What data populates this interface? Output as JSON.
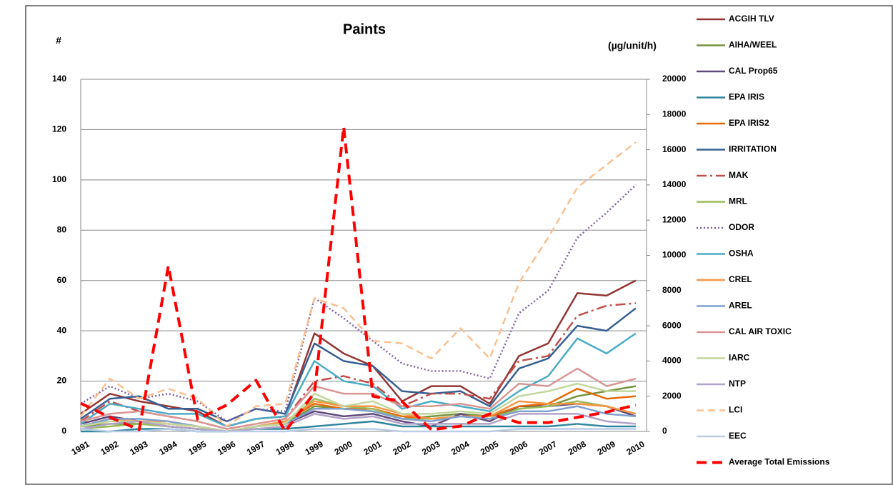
{
  "chart_data": {
    "type": "line",
    "title": "Paints",
    "y_label": "#",
    "y2_label": "(µg/unit/h)",
    "categories": [
      "1991",
      "1992",
      "1993",
      "1994",
      "1995",
      "1996",
      "1997",
      "1998",
      "1999",
      "2000",
      "2001",
      "2002",
      "2003",
      "2004",
      "2005",
      "2006",
      "2007",
      "2008",
      "2009",
      "2010"
    ],
    "ylim": [
      0,
      140
    ],
    "yticks": [
      0,
      20,
      40,
      60,
      80,
      100,
      120,
      140
    ],
    "y2lim": [
      0,
      20000
    ],
    "y2ticks": [
      0,
      2000,
      4000,
      6000,
      8000,
      10000,
      12000,
      14000,
      16000,
      18000,
      20000
    ],
    "grid": true,
    "legend": "right",
    "series": [
      {
        "name": "ACGIH TLV",
        "color": "#943634",
        "style": "solid",
        "values": [
          7,
          15,
          12,
          10,
          8,
          2,
          5,
          6,
          39,
          31,
          26,
          12,
          18,
          18,
          11,
          30,
          35,
          55,
          54,
          60
        ]
      },
      {
        "name": "AIHA/WEEL",
        "color": "#76923c",
        "style": "solid",
        "values": [
          2,
          3,
          3,
          2,
          1,
          0,
          2,
          3,
          10,
          9,
          8,
          5,
          6,
          7,
          6,
          9,
          10,
          14,
          16,
          18
        ]
      },
      {
        "name": "CAL Prop65",
        "color": "#5f497a",
        "style": "solid",
        "values": [
          3,
          6,
          4,
          2,
          1,
          0,
          2,
          3,
          8,
          6,
          7,
          4,
          2,
          7,
          4,
          10,
          10,
          11,
          10,
          6
        ]
      },
      {
        "name": "EPA IRIS",
        "color": "#31859c",
        "style": "solid",
        "values": [
          0,
          0,
          1,
          1,
          0,
          0,
          1,
          1,
          2,
          3,
          4,
          2,
          2,
          2,
          2,
          2,
          2,
          3,
          2,
          2
        ]
      },
      {
        "name": "EPA IRIS2",
        "color": "#e46c0a",
        "style": "solid",
        "values": [
          2,
          5,
          4,
          3,
          2,
          0,
          2,
          4,
          11,
          9,
          9,
          6,
          5,
          6,
          6,
          10,
          11,
          17,
          13,
          14
        ]
      },
      {
        "name": "IRRITATION",
        "color": "#376092",
        "style": "solid",
        "values": [
          5,
          13,
          14,
          9,
          9,
          4,
          9,
          7,
          35,
          28,
          26,
          16,
          15,
          16,
          10,
          25,
          29,
          42,
          40,
          49
        ]
      },
      {
        "name": "MAK",
        "color": "#c0504d",
        "style": "dashdot",
        "values": [
          4,
          12,
          8,
          6,
          4,
          1,
          3,
          5,
          20,
          22,
          19,
          10,
          15,
          15,
          13,
          28,
          30,
          46,
          50,
          51
        ]
      },
      {
        "name": "MRL",
        "color": "#9bbb59",
        "style": "solid",
        "values": [
          1,
          2,
          3,
          2,
          1,
          0,
          2,
          3,
          13,
          10,
          9,
          5,
          5,
          6,
          5,
          9,
          10,
          12,
          10,
          7
        ]
      },
      {
        "name": "ODOR",
        "color": "#8064a2",
        "style": "dotted",
        "values": [
          11,
          18,
          13,
          15,
          12,
          4,
          9,
          8,
          53,
          45,
          36,
          27,
          24,
          24,
          21,
          47,
          56,
          77,
          87,
          98
        ]
      },
      {
        "name": "OSHA",
        "color": "#4bacc6",
        "style": "solid",
        "values": [
          3,
          11,
          9,
          7,
          7,
          2,
          5,
          6,
          28,
          20,
          18,
          9,
          12,
          10,
          8,
          16,
          22,
          37,
          31,
          39
        ]
      },
      {
        "name": "CREL",
        "color": "#f79646",
        "style": "solid",
        "values": [
          2,
          5,
          4,
          4,
          2,
          0,
          2,
          4,
          12,
          10,
          10,
          7,
          5,
          6,
          6,
          12,
          11,
          11,
          10,
          7
        ]
      },
      {
        "name": "AREL",
        "color": "#7f9fcf",
        "style": "solid",
        "values": [
          2,
          5,
          5,
          4,
          2,
          0,
          2,
          3,
          9,
          9,
          8,
          5,
          4,
          6,
          5,
          8,
          8,
          10,
          7,
          6
        ]
      },
      {
        "name": "CAL AIR TOXIC",
        "color": "#d99694",
        "style": "solid",
        "values": [
          4,
          7,
          8,
          6,
          4,
          1,
          3,
          5,
          18,
          15,
          15,
          10,
          10,
          11,
          9,
          19,
          18,
          25,
          18,
          21
        ]
      },
      {
        "name": "IARC",
        "color": "#c3d69b",
        "style": "solid",
        "values": [
          2,
          4,
          4,
          3,
          2,
          0,
          2,
          3,
          15,
          10,
          12,
          7,
          7,
          8,
          7,
          14,
          16,
          19,
          16,
          16
        ]
      },
      {
        "name": "NTP",
        "color": "#b3a2c7",
        "style": "solid",
        "values": [
          1,
          3,
          4,
          2,
          1,
          0,
          1,
          2,
          7,
          5,
          6,
          3,
          3,
          3,
          3,
          7,
          7,
          7,
          4,
          3
        ]
      },
      {
        "name": "LCI",
        "color": "#fac090",
        "style": "dashed",
        "values": [
          6,
          21,
          13,
          17,
          13,
          2,
          10,
          11,
          53,
          49,
          36,
          35,
          29,
          41,
          29,
          59,
          77,
          97,
          106,
          115
        ]
      },
      {
        "name": "EEC",
        "color": "#b9cde5",
        "style": "solid",
        "values": [
          1,
          0,
          0,
          1,
          0,
          0,
          0,
          0,
          1,
          1,
          1,
          0,
          0,
          0,
          0,
          1,
          1,
          1,
          1,
          1
        ]
      },
      {
        "name": "Average Total Emissions",
        "color": "#ff0000",
        "style": "heavydash",
        "axis": "y2",
        "values": [
          1600,
          800,
          100,
          9400,
          700,
          1500,
          2900,
          0,
          2200,
          17300,
          2000,
          1700,
          100,
          300,
          1000,
          500,
          500,
          800,
          1100,
          1500
        ]
      }
    ]
  }
}
